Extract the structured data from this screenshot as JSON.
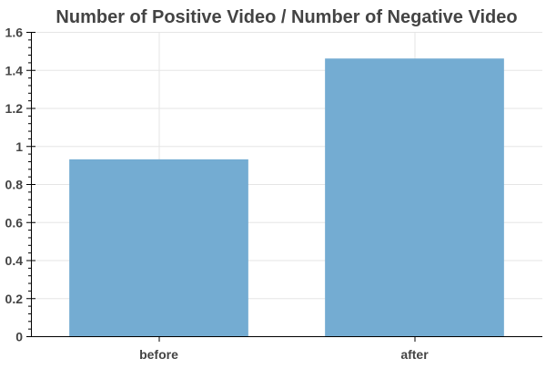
{
  "chart_data": {
    "type": "bar",
    "title": "Number of Positive Video / Number of Negative Video",
    "categories": [
      "before",
      "after"
    ],
    "values": [
      0.93,
      1.46
    ],
    "xlabel": "",
    "ylabel": "",
    "ylim": [
      0,
      1.6
    ],
    "yticks": [
      0,
      0.2,
      0.4,
      0.6,
      0.8,
      1,
      1.2,
      1.4,
      1.6
    ],
    "ytick_labels": [
      "0",
      "0.2",
      "0.4",
      "0.6",
      "0.8",
      "1",
      "1.2",
      "1.4",
      "1.6"
    ],
    "grid": true,
    "legend": "none",
    "bar_color": "#74acd2"
  }
}
